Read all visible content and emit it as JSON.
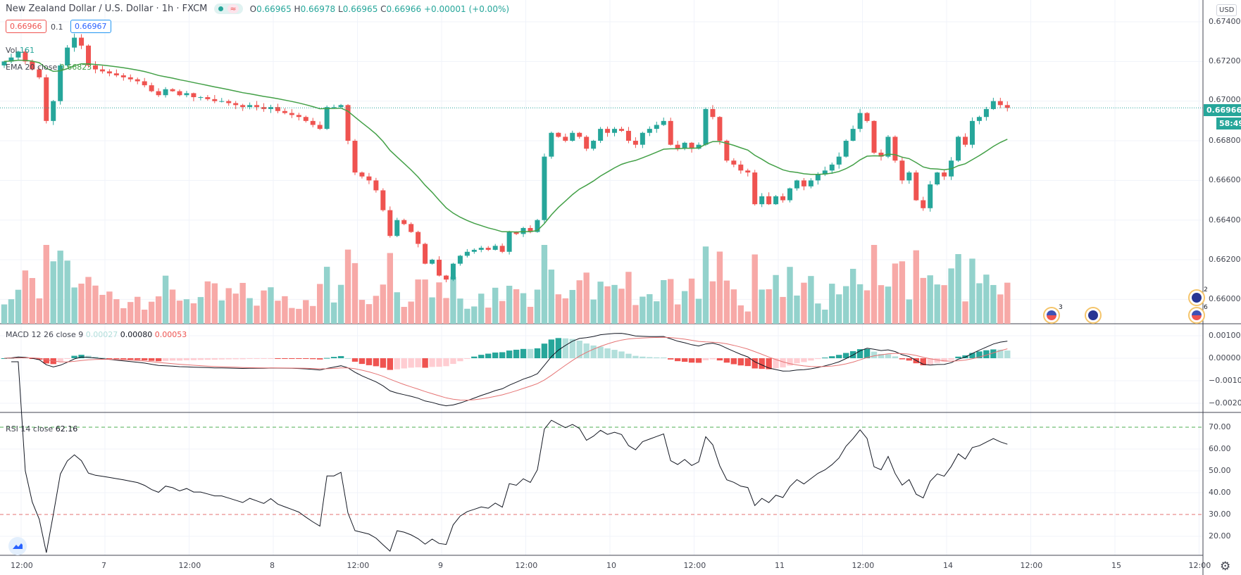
{
  "header": {
    "title": "New Zealand Dollar / U.S. Dollar · 1h · FXCM",
    "status_icon": "market-open-dot",
    "wave_icon": "≈",
    "ohlc": {
      "o_label": "O",
      "o": "0.66965",
      "h_label": "H",
      "h": "0.66978",
      "l_label": "L",
      "l": "0.66965",
      "c_label": "C",
      "c": "0.66966",
      "change": "+0.00001 (+0.00%)"
    }
  },
  "trade": {
    "sell": "0.66966",
    "spread": "0.1",
    "buy": "0.66967"
  },
  "legends": {
    "vol_label": "Vol",
    "vol_value": "161",
    "ema_label": "EMA 20 close",
    "ema_value": "0.66823",
    "macd_label": "MACD 12 26 close 9",
    "macd_hist": "0.00027",
    "macd_line": "0.00080",
    "macd_signal": "0.00053",
    "rsi_label": "RSI 14 close",
    "rsi_value": "62.16"
  },
  "price_axis": {
    "currency": "USD",
    "ticks": [
      "0.67400",
      "0.67200",
      "0.67000",
      "0.66800",
      "0.66600",
      "0.66400",
      "0.66200",
      "0.66000"
    ],
    "last_price": "0.66966",
    "countdown": "58:49"
  },
  "macd_axis": {
    "ticks": [
      "0.00100",
      "0.00000",
      "−0.00100",
      "−0.00200"
    ]
  },
  "rsi_axis": {
    "ticks": [
      "70.00",
      "60.00",
      "50.00",
      "40.00",
      "30.00",
      "20.00"
    ]
  },
  "time_axis": {
    "labels": [
      "12:00",
      "7",
      "12:00",
      "8",
      "12:00",
      "9",
      "12:00",
      "10",
      "12:00",
      "11",
      "12:00",
      "14",
      "12:00",
      "15",
      "12:00"
    ]
  },
  "events": [
    {
      "flag": "us",
      "count": "3"
    },
    {
      "flag": "nz",
      "count": ""
    },
    {
      "flag": "nz",
      "count": "2"
    },
    {
      "flag": "us",
      "count": "6"
    }
  ],
  "colors": {
    "up": "#26a69a",
    "down": "#ef5350",
    "ema": "#43a047",
    "macd": "#131722",
    "signal": "#e57373",
    "rsi": "#131722",
    "last_price": "#26a69a"
  },
  "chart_data": {
    "type": "candlestick",
    "symbol": "NZDUSD",
    "interval": "1h",
    "y_range": [
      0.6595,
      0.6745
    ],
    "close": [
      0.672,
      0.6722,
      0.6725,
      0.672,
      0.6716,
      0.6712,
      0.669,
      0.67,
      0.6718,
      0.6727,
      0.6732,
      0.6728,
      0.6718,
      0.6716,
      0.6715,
      0.6714,
      0.6713,
      0.6712,
      0.6711,
      0.671,
      0.6708,
      0.6705,
      0.6703,
      0.6706,
      0.6705,
      0.6703,
      0.6704,
      0.6702,
      0.6702,
      0.6701,
      0.67,
      0.67,
      0.6699,
      0.6698,
      0.6697,
      0.6698,
      0.6697,
      0.6696,
      0.6697,
      0.6695,
      0.6694,
      0.6693,
      0.6692,
      0.669,
      0.6688,
      0.6686,
      0.6697,
      0.6697,
      0.6698,
      0.668,
      0.6664,
      0.6662,
      0.666,
      0.6655,
      0.6645,
      0.6632,
      0.664,
      0.6638,
      0.6634,
      0.6628,
      0.6618,
      0.662,
      0.6612,
      0.661,
      0.6618,
      0.6622,
      0.6624,
      0.6625,
      0.6626,
      0.6625,
      0.6627,
      0.6624,
      0.6634,
      0.6633,
      0.6636,
      0.6634,
      0.664,
      0.6672,
      0.6684,
      0.6682,
      0.668,
      0.6684,
      0.6682,
      0.6676,
      0.668,
      0.6686,
      0.6684,
      0.6686,
      0.6685,
      0.668,
      0.6678,
      0.6684,
      0.6686,
      0.6688,
      0.669,
      0.6678,
      0.6676,
      0.6679,
      0.6676,
      0.6678,
      0.6696,
      0.6692,
      0.668,
      0.667,
      0.6668,
      0.6665,
      0.6664,
      0.6648,
      0.6652,
      0.6648,
      0.6652,
      0.665,
      0.6656,
      0.666,
      0.6657,
      0.666,
      0.6663,
      0.6665,
      0.6668,
      0.6672,
      0.668,
      0.6686,
      0.6694,
      0.669,
      0.6674,
      0.6672,
      0.6682,
      0.667,
      0.666,
      0.6664,
      0.665,
      0.6646,
      0.6658,
      0.6664,
      0.6662,
      0.667,
      0.6682,
      0.6678,
      0.669,
      0.6692,
      0.6696,
      0.67,
      0.6698,
      0.66966
    ],
    "ema_period": 20,
    "macd_params": [
      12,
      26,
      9
    ],
    "rsi_period": 14,
    "rsi_levels": [
      70,
      30
    ]
  }
}
